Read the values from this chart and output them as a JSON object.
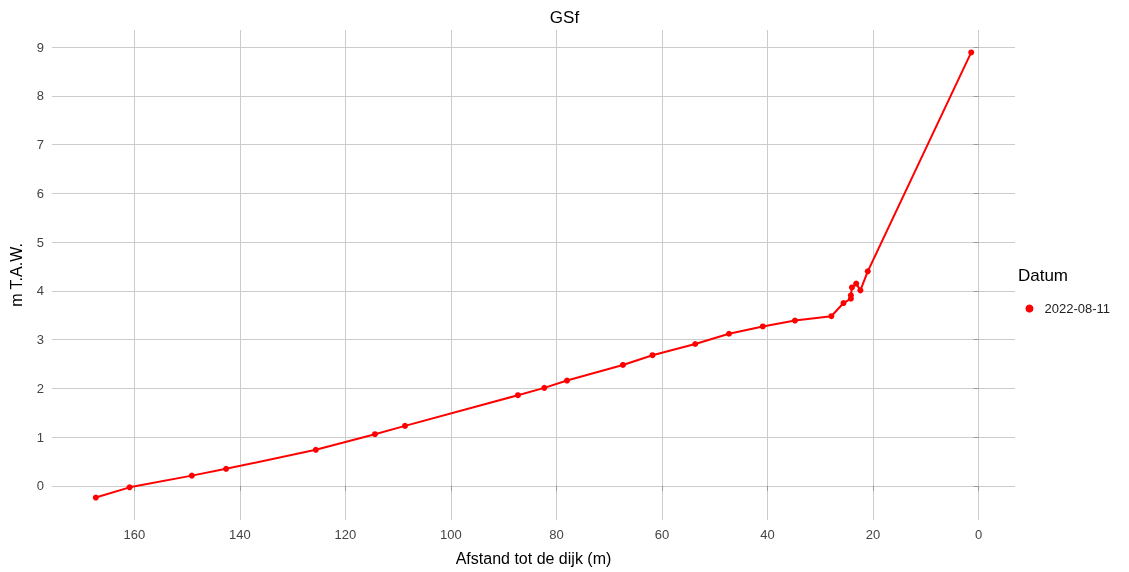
{
  "chart_data": {
    "type": "line",
    "title": "GSf",
    "xlabel": "Afstand tot de dijk (m)",
    "ylabel": "m T.A.W.",
    "legend_title": "Datum",
    "x": [
      167.3,
      160.9,
      149.1,
      142.6,
      125.6,
      114.4,
      108.7,
      87.3,
      82.3,
      78.0,
      67.4,
      61.8,
      53.7,
      47.3,
      40.9,
      34.8,
      27.9,
      25.6,
      24.2,
      24.2,
      24.0,
      23.2,
      22.4,
      21.0,
      1.4
    ],
    "series": [
      {
        "name": "2022-08-11",
        "color": "#ff0000",
        "values": [
          -0.24,
          -0.03,
          0.21,
          0.35,
          0.74,
          1.06,
          1.23,
          1.86,
          2.01,
          2.16,
          2.48,
          2.68,
          2.91,
          3.12,
          3.27,
          3.39,
          3.48,
          3.75,
          3.84,
          3.91,
          4.07,
          4.15,
          4.01,
          4.4,
          8.89
        ]
      }
    ],
    "xlim": [
      175.6,
      -6.9
    ],
    "xticks": [
      160,
      140,
      120,
      100,
      80,
      60,
      40,
      20,
      0
    ],
    "ylim": [
      -0.7,
      9.35
    ],
    "yticks": [
      0,
      1,
      2,
      3,
      4,
      5,
      6,
      7,
      8,
      9
    ],
    "grid": true,
    "legend": "right",
    "marker": "circle",
    "line_style": "solid"
  }
}
